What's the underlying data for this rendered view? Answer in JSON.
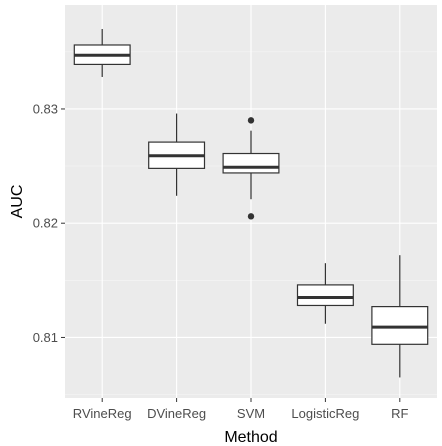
{
  "chart_data": {
    "type": "boxplot",
    "title": "",
    "xlabel": "Method",
    "ylabel": "AUC",
    "grid": true,
    "legend": "none",
    "ylim": [
      0.8047,
      0.8391
    ],
    "yticks": [
      0.81,
      0.82,
      0.83
    ],
    "ytick_labels": [
      "0.81",
      "0.82",
      "0.83"
    ],
    "categories": [
      "RVineReg",
      "DVineReg",
      "SVM",
      "LogisticReg",
      "RF"
    ],
    "boxes": [
      {
        "category": "RVineReg",
        "whisker_low": 0.8328,
        "q1": 0.8339,
        "median": 0.8347,
        "q3": 0.8356,
        "whisker_high": 0.837,
        "outliers": []
      },
      {
        "category": "DVineReg",
        "whisker_low": 0.8224,
        "q1": 0.8248,
        "median": 0.8259,
        "q3": 0.8271,
        "whisker_high": 0.8296,
        "outliers": []
      },
      {
        "category": "SVM",
        "whisker_low": 0.8221,
        "q1": 0.8244,
        "median": 0.8249,
        "q3": 0.8261,
        "whisker_high": 0.8281,
        "outliers": [
          0.8206,
          0.829
        ]
      },
      {
        "category": "LogisticReg",
        "whisker_low": 0.8112,
        "q1": 0.8128,
        "median": 0.8135,
        "q3": 0.8146,
        "whisker_high": 0.8165,
        "outliers": []
      },
      {
        "category": "RF",
        "whisker_low": 0.8065,
        "q1": 0.8094,
        "median": 0.8109,
        "q3": 0.8127,
        "whisker_high": 0.8172,
        "outliers": []
      }
    ],
    "colors": {
      "panel_background": "#EBEBEB",
      "major_grid": "#FFFFFF",
      "minor_grid": "#F5F5F5",
      "box_fill": "#FFFFFF",
      "box_stroke": "#333333",
      "axis_text": "#4D4D4D",
      "axis_title": "#000000",
      "tick": "#333333"
    }
  }
}
